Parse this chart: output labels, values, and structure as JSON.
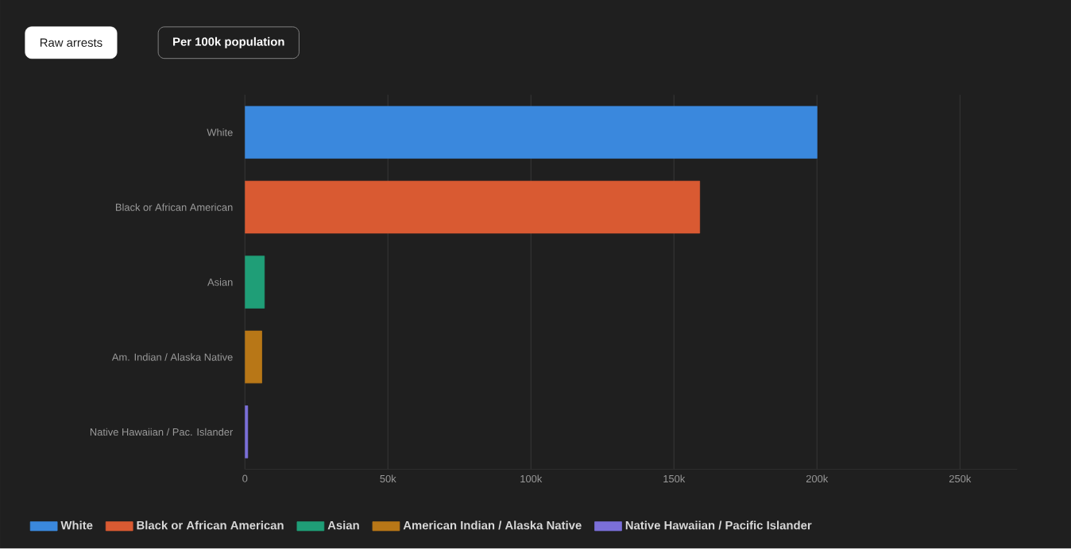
{
  "chart_data": {
    "type": "bar",
    "orientation": "horizontal",
    "categories": [
      "White",
      "Black or African American",
      "Asian",
      "Am. Indian / Alaska Native",
      "Native Hawaiian / Pac. Islander"
    ],
    "series": [
      {
        "name": "White",
        "color": "#3a88dd",
        "values": [
          200000,
          null,
          null,
          null,
          null
        ]
      },
      {
        "name": "Black or African American",
        "color": "#d95a32",
        "values": [
          null,
          159000,
          null,
          null,
          null
        ]
      },
      {
        "name": "Asian",
        "color": "#1f9e77",
        "values": [
          null,
          null,
          6800,
          null,
          null
        ]
      },
      {
        "name": "American Indian / Alaska Native",
        "color": "#b87717",
        "values": [
          null,
          null,
          null,
          5900,
          null
        ]
      },
      {
        "name": "Native Hawaiian / Pacific Islander",
        "color": "#7b6fd8",
        "values": [
          null,
          null,
          null,
          null,
          1000
        ]
      }
    ],
    "xlim": [
      0,
      270000
    ],
    "xticks": [
      0,
      {
        "value": 50000,
        "label": "50k"
      },
      {
        "value": 100000,
        "label": "100k"
      },
      {
        "value": 150000,
        "label": "150k"
      },
      {
        "value": 200000,
        "label": "200k"
      },
      {
        "value": 250000,
        "label": "250k"
      }
    ],
    "grid": "x",
    "legend": "bottom",
    "annotations": [
      "Raw arrests",
      "Per 100k population"
    ]
  }
}
